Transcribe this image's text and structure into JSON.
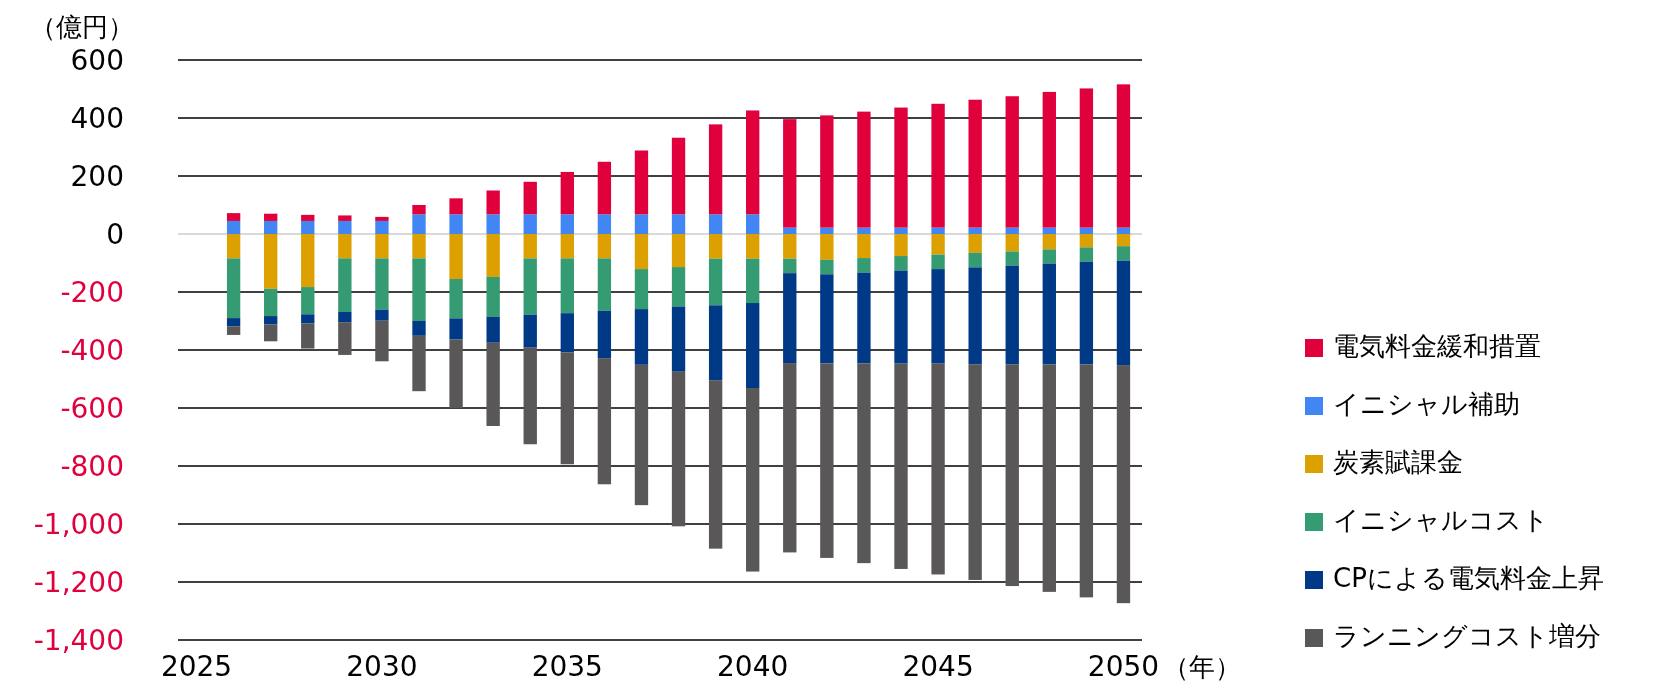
{
  "chart_data": {
    "type": "bar",
    "stacked": true,
    "ylabel": "（億円）",
    "xlabel": "（年）",
    "categories": [
      "2025",
      null,
      null,
      null,
      null,
      "2030",
      null,
      null,
      null,
      null,
      "2035",
      null,
      null,
      null,
      null,
      "2040",
      null,
      null,
      null,
      null,
      "2045",
      null,
      null,
      null,
      null,
      "2050"
    ],
    "series": [
      {
        "name": "イニシャル補助",
        "color": "#4286f4",
        "values": [
          null,
          45,
          45,
          45,
          45,
          45,
          68,
          68,
          68,
          68,
          68,
          68,
          68,
          68,
          68,
          68,
          22,
          22,
          22,
          22,
          22,
          22,
          22,
          22,
          22,
          22
        ]
      },
      {
        "name": "電気料金緩和措置",
        "color": "#e0003c",
        "values": [
          null,
          27,
          25,
          21,
          19,
          14,
          32,
          55,
          82,
          112,
          146,
          181,
          220,
          264,
          310,
          358,
          374,
          387,
          400,
          414,
          427,
          441,
          453,
          468,
          480,
          494
        ]
      },
      {
        "name": "炭素賦課金",
        "color": "#dca000",
        "values": [
          null,
          -84,
          -189,
          -183,
          -84,
          -84,
          -84,
          -155,
          -148,
          -84,
          -84,
          -84,
          -121,
          -114,
          -85,
          -85,
          -85,
          -89,
          -83,
          -76,
          -71,
          -65,
          -60,
          -53,
          -46,
          -42
        ]
      },
      {
        "name": "イニシャルコスト",
        "color": "#359b73",
        "values": [
          null,
          -206,
          -94,
          -94,
          -185,
          -177,
          -216,
          -136,
          -138,
          -194,
          -189,
          -181,
          -138,
          -136,
          -161,
          -153,
          -50,
          -50,
          -50,
          -50,
          -50,
          -50,
          -49,
          -49,
          -50,
          -50
        ]
      },
      {
        "name": "CPによる電気料金上昇",
        "color": "#003a86",
        "values": [
          null,
          -28,
          -29,
          -31,
          -35,
          -38,
          -51,
          -73,
          -89,
          -114,
          -135,
          -163,
          -192,
          -225,
          -258,
          -293,
          -310,
          -307,
          -313,
          -321,
          -326,
          -334,
          -340,
          -348,
          -354,
          -360
        ]
      },
      {
        "name": "ランニングコスト増分",
        "color": "#595757",
        "values": [
          null,
          -30,
          -58,
          -87,
          -113,
          -140,
          -191,
          -236,
          -287,
          -333,
          -386,
          -435,
          -484,
          -533,
          -581,
          -633,
          -653,
          -671,
          -689,
          -708,
          -727,
          -744,
          -765,
          -784,
          -803,
          -821
        ]
      }
    ],
    "ylim": [
      -1400,
      600
    ],
    "yticks": [
      {
        "value": -1400,
        "label": "-1,400"
      },
      {
        "value": -1200,
        "label": "-1,200"
      },
      {
        "value": -1000,
        "label": "-1,000"
      },
      -800,
      -600,
      -400,
      -200,
      0,
      200,
      400,
      600
    ],
    "grid": "y",
    "legend": "right"
  }
}
